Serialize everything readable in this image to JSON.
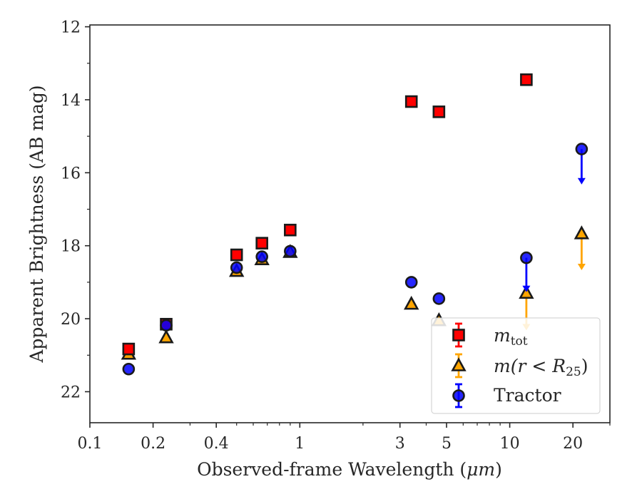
{
  "chart_data": {
    "type": "scatter",
    "xlabel": "Observed-frame Wavelength (",
    "xlabel_unit": "μm",
    "xlabel_close": ")",
    "ylabel": "Apparent Brightness (AB mag)",
    "x_scale": "log",
    "y_inverted": true,
    "xlim": [
      0.1,
      30
    ],
    "ylim": [
      22.85,
      11.95
    ],
    "x_ticks": [
      {
        "value": 0.1,
        "label": "0.1"
      },
      {
        "value": 0.2,
        "label": "0.2"
      },
      {
        "value": 0.4,
        "label": "0.4"
      },
      {
        "value": 1,
        "label": "1"
      },
      {
        "value": 3,
        "label": "3"
      },
      {
        "value": 5,
        "label": "5"
      },
      {
        "value": 10,
        "label": "10"
      },
      {
        "value": 20,
        "label": "20"
      }
    ],
    "x_minor_ticks": [
      0.3,
      0.5,
      0.6,
      0.7,
      0.8,
      0.9,
      2,
      4,
      6,
      7,
      8,
      9,
      30
    ],
    "y_ticks": [
      {
        "value": 12,
        "label": "12"
      },
      {
        "value": 14,
        "label": "14"
      },
      {
        "value": 16,
        "label": "16"
      },
      {
        "value": 18,
        "label": "18"
      },
      {
        "value": 20,
        "label": "20"
      },
      {
        "value": 22,
        "label": "22"
      }
    ],
    "y_minor_ticks": [
      13,
      15,
      17,
      19,
      21
    ],
    "grid": false,
    "legend_position": "bottom-right",
    "series": [
      {
        "key": "mtot",
        "legend_main": "m",
        "legend_sub": "tot",
        "marker": "square",
        "fill": "#ff0000",
        "edge": "#1a1a1a",
        "err_color": "#ff0000",
        "points": [
          {
            "x": 0.153,
            "y": 20.83
          },
          {
            "x": 0.231,
            "y": 20.15
          },
          {
            "x": 0.5,
            "y": 18.25
          },
          {
            "x": 0.66,
            "y": 17.93
          },
          {
            "x": 0.9,
            "y": 17.57
          },
          {
            "x": 3.4,
            "y": 14.05
          },
          {
            "x": 4.6,
            "y": 14.33
          },
          {
            "x": 12.0,
            "y": 13.45
          }
        ]
      },
      {
        "key": "mr25",
        "legend_main": "m(r < R",
        "legend_sub": "25",
        "legend_close": ")",
        "marker": "triangle",
        "fill": "#ffa500",
        "edge": "#1a1a1a",
        "err_color": "#ffa500",
        "points": [
          {
            "x": 0.153,
            "y": 20.97
          },
          {
            "x": 0.231,
            "y": 20.52
          },
          {
            "x": 0.5,
            "y": 18.7
          },
          {
            "x": 0.66,
            "y": 18.38
          },
          {
            "x": 0.9,
            "y": 18.18
          },
          {
            "x": 3.4,
            "y": 19.6
          },
          {
            "x": 4.6,
            "y": 20.05
          },
          {
            "x": 12.0,
            "y": 19.3,
            "upper_limit_to": 20.3
          },
          {
            "x": 22.0,
            "y": 17.67,
            "upper_limit_to": 18.65
          }
        ]
      },
      {
        "key": "tractor",
        "legend_main": "Tractor",
        "marker": "circle",
        "fill": "#0000ff",
        "edge": "#1a1a1a",
        "err_color": "#0000ff",
        "points": [
          {
            "x": 0.153,
            "y": 21.38
          },
          {
            "x": 0.231,
            "y": 20.18
          },
          {
            "x": 0.5,
            "y": 18.6
          },
          {
            "x": 0.66,
            "y": 18.3
          },
          {
            "x": 0.9,
            "y": 18.15
          },
          {
            "x": 3.4,
            "y": 19.0
          },
          {
            "x": 4.6,
            "y": 19.45
          },
          {
            "x": 12.0,
            "y": 18.33,
            "upper_limit_to": 19.25
          },
          {
            "x": 22.0,
            "y": 15.35,
            "upper_limit_to": 16.3
          }
        ]
      }
    ]
  }
}
